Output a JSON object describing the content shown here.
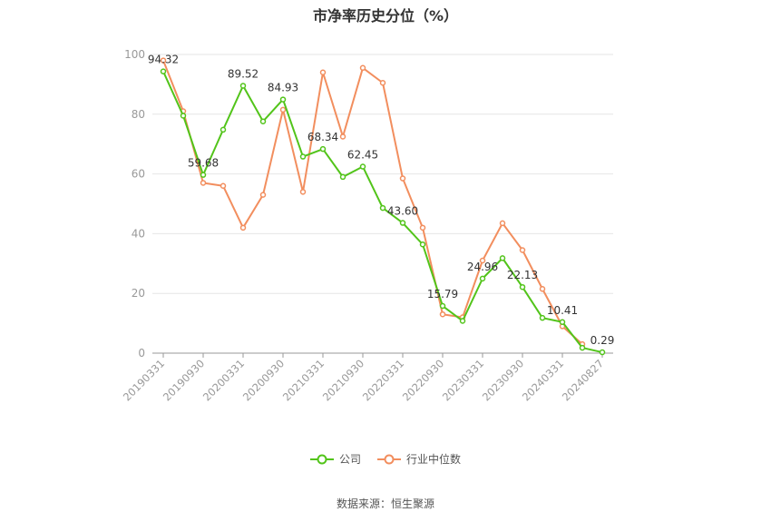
{
  "chart_data": {
    "type": "line",
    "title": "市净率历史分位（%）",
    "x": [
      "20190331",
      "20190630",
      "20190930",
      "20191231",
      "20200331",
      "20200630",
      "20200930",
      "20201231",
      "20210331",
      "20210630",
      "20210930",
      "20211231",
      "20220331",
      "20220630",
      "20220930",
      "20221231",
      "20230331",
      "20230630",
      "20230930",
      "20231231",
      "20240331",
      "20240630",
      "20240827"
    ],
    "x_tick_labels": [
      "20190331",
      "20190930",
      "20200331",
      "20200930",
      "20210331",
      "20210930",
      "20220331",
      "20220930",
      "20230331",
      "20230930",
      "20240331",
      "20240827"
    ],
    "ylim": [
      0,
      100
    ],
    "y_ticks": [
      0,
      20,
      40,
      60,
      80,
      100
    ],
    "grid": true,
    "legend_position": "bottom",
    "series": [
      {
        "name": "公司",
        "color": "#52c41a",
        "values": [
          94.32,
          79.5,
          59.68,
          74.8,
          89.52,
          77.6,
          84.93,
          65.8,
          68.34,
          59.0,
          62.45,
          48.6,
          43.6,
          36.4,
          15.79,
          10.8,
          24.96,
          31.8,
          22.13,
          11.8,
          10.41,
          1.8,
          0.29
        ],
        "labels": [
          "94.32",
          "",
          "59.68",
          "",
          "89.52",
          "",
          "84.93",
          "",
          "68.34",
          "",
          "62.45",
          "",
          "43.60",
          "",
          "15.79",
          "",
          "24.96",
          "",
          "22.13",
          "",
          "10.41",
          "",
          "0.29"
        ]
      },
      {
        "name": "行业中位数",
        "color": "#f28e5e",
        "values": [
          98.0,
          81.0,
          57.0,
          56.0,
          42.0,
          53.0,
          81.5,
          54.0,
          94.0,
          72.5,
          95.5,
          90.5,
          58.5,
          42.0,
          13.0,
          12.0,
          31.0,
          43.5,
          34.5,
          21.5,
          9.0,
          3.0,
          null
        ],
        "labels": []
      }
    ]
  },
  "footer": {
    "source": "数据来源：恒生聚源"
  }
}
